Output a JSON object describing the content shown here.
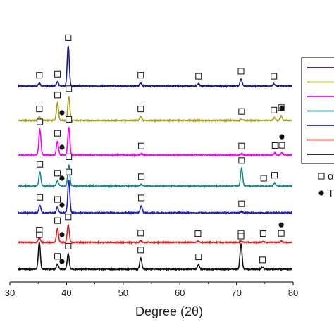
{
  "chart_data": {
    "type": "line",
    "title": "",
    "xlabel": "Degree (2θ)",
    "ylabel": "",
    "xlim": [
      30,
      80
    ],
    "xticks": [
      30,
      40,
      50,
      60,
      70,
      80
    ],
    "grid": false,
    "legend_placement": "right",
    "legend_markers": [
      {
        "symbol": "square",
        "text": "α"
      },
      {
        "symbol": "dot",
        "text": "T"
      }
    ],
    "series": [
      {
        "color": "#1a1a8c",
        "offset": 7,
        "peaks": [
          {
            "x": 35.2,
            "h": 0.12
          },
          {
            "x": 38.4,
            "h": 0.16
          },
          {
            "x": 40.3,
            "h": 1.6
          },
          {
            "x": 53.1,
            "h": 0.12
          },
          {
            "x": 63.3,
            "h": 0.08
          },
          {
            "x": 70.8,
            "h": 0.28
          },
          {
            "x": 76.6,
            "h": 0.08
          }
        ],
        "markers": [
          {
            "x": 35.2,
            "symbol": "square"
          },
          {
            "x": 38.4,
            "symbol": "square"
          },
          {
            "x": 40.3,
            "symbol": "square"
          },
          {
            "x": 53.1,
            "symbol": "square"
          },
          {
            "x": 63.3,
            "symbol": "square"
          },
          {
            "x": 70.8,
            "symbol": "square"
          },
          {
            "x": 76.6,
            "symbol": "square"
          }
        ]
      },
      {
        "color": "#a6a020",
        "offset": 6,
        "peaks": [
          {
            "x": 35.2,
            "h": 0.15
          },
          {
            "x": 38.4,
            "h": 0.7
          },
          {
            "x": 40.4,
            "h": 0.95
          },
          {
            "x": 53.1,
            "h": 0.15
          },
          {
            "x": 70.9,
            "h": 0.05
          },
          {
            "x": 76.7,
            "h": 0.12
          },
          {
            "x": 77.9,
            "h": 0.2
          }
        ],
        "markers": [
          {
            "x": 35.2,
            "symbol": "square"
          },
          {
            "x": 38.4,
            "symbol": "square"
          },
          {
            "x": 39.2,
            "symbol": "dot"
          },
          {
            "x": 40.4,
            "symbol": "square"
          },
          {
            "x": 53.1,
            "symbol": "square"
          },
          {
            "x": 70.9,
            "symbol": "square"
          },
          {
            "x": 76.6,
            "symbol": "square"
          },
          {
            "x": 77.9,
            "symbol": "square"
          },
          {
            "x": 78.0,
            "symbol": "dot"
          }
        ]
      },
      {
        "color": "#ff00ff",
        "offset": 5,
        "peaks": [
          {
            "x": 35.3,
            "h": 1.0
          },
          {
            "x": 38.4,
            "h": 0.55
          },
          {
            "x": 40.4,
            "h": 1.1
          },
          {
            "x": 53.2,
            "h": 0.05
          },
          {
            "x": 70.9,
            "h": 0.05
          },
          {
            "x": 76.8,
            "h": 0.07
          },
          {
            "x": 78.0,
            "h": 0.08
          }
        ],
        "markers": [
          {
            "x": 35.3,
            "symbol": "square"
          },
          {
            "x": 38.4,
            "symbol": "square"
          },
          {
            "x": 39.2,
            "symbol": "dot"
          },
          {
            "x": 40.4,
            "symbol": "square"
          },
          {
            "x": 53.2,
            "symbol": "square"
          },
          {
            "x": 70.9,
            "symbol": "square"
          },
          {
            "x": 76.8,
            "symbol": "square"
          },
          {
            "x": 78.0,
            "symbol": "square"
          },
          {
            "x": 78.0,
            "symbol": "dot"
          }
        ]
      },
      {
        "color": "#1a8c8c",
        "offset": 4,
        "peaks": [
          {
            "x": 35.3,
            "h": 0.55
          },
          {
            "x": 38.4,
            "h": 0.2
          },
          {
            "x": 40.4,
            "h": 0.85
          },
          {
            "x": 53.2,
            "h": 0.06
          },
          {
            "x": 70.9,
            "h": 0.7
          },
          {
            "x": 76.7,
            "h": 0.12
          }
        ],
        "markers": [
          {
            "x": 35.3,
            "symbol": "square"
          },
          {
            "x": 38.4,
            "symbol": "square"
          },
          {
            "x": 39.2,
            "symbol": "dot"
          },
          {
            "x": 40.4,
            "symbol": "square"
          },
          {
            "x": 53.2,
            "symbol": "square"
          },
          {
            "x": 70.9,
            "symbol": "square"
          },
          {
            "x": 74.8,
            "symbol": "square"
          },
          {
            "x": 76.7,
            "symbol": "square"
          }
        ]
      },
      {
        "color": "#1f1fcc",
        "offset": 3,
        "peaks": [
          {
            "x": 35.3,
            "h": 0.3
          },
          {
            "x": 38.4,
            "h": 0.22
          },
          {
            "x": 40.4,
            "h": 1.3
          },
          {
            "x": 53.2,
            "h": 0.28
          },
          {
            "x": 70.9,
            "h": 0.05
          }
        ],
        "markers": [
          {
            "x": 35.3,
            "symbol": "square"
          },
          {
            "x": 38.4,
            "symbol": "square"
          },
          {
            "x": 39.2,
            "symbol": "dot"
          },
          {
            "x": 40.4,
            "symbol": "square"
          },
          {
            "x": 53.2,
            "symbol": "square"
          },
          {
            "x": 70.9,
            "symbol": "square"
          }
        ]
      },
      {
        "color": "#dd2222",
        "offset": 2,
        "peaks": [
          {
            "x": 35.2,
            "h": 0.18
          },
          {
            "x": 38.4,
            "h": 0.55
          },
          {
            "x": 40.3,
            "h": 0.7
          },
          {
            "x": 53.1,
            "h": 0.06
          },
          {
            "x": 63.2,
            "h": 0.04
          },
          {
            "x": 70.8,
            "h": 0.05
          },
          {
            "x": 74.7,
            "h": 0.04
          },
          {
            "x": 77.9,
            "h": 0.05
          }
        ],
        "markers": [
          {
            "x": 35.2,
            "symbol": "square"
          },
          {
            "x": 38.4,
            "symbol": "square"
          },
          {
            "x": 39.2,
            "symbol": "dot"
          },
          {
            "x": 40.3,
            "symbol": "square"
          },
          {
            "x": 53.1,
            "symbol": "square"
          },
          {
            "x": 63.2,
            "symbol": "square"
          },
          {
            "x": 70.8,
            "symbol": "square"
          },
          {
            "x": 74.7,
            "symbol": "square"
          },
          {
            "x": 77.9,
            "symbol": "square"
          },
          {
            "x": 77.9,
            "symbol": "dot"
          }
        ]
      },
      {
        "color": "#111111",
        "offset": 1,
        "peaks": [
          {
            "x": 35.2,
            "h": 1.05
          },
          {
            "x": 38.4,
            "h": 0.2
          },
          {
            "x": 40.3,
            "h": 0.6
          },
          {
            "x": 53.1,
            "h": 0.45
          },
          {
            "x": 63.3,
            "h": 0.18
          },
          {
            "x": 70.8,
            "h": 1.0
          },
          {
            "x": 74.6,
            "h": 0.06
          }
        ],
        "markers": [
          {
            "x": 35.2,
            "symbol": "square"
          },
          {
            "x": 38.4,
            "symbol": "square"
          },
          {
            "x": 39.2,
            "symbol": "dot"
          },
          {
            "x": 40.3,
            "symbol": "square"
          },
          {
            "x": 53.1,
            "symbol": "square"
          },
          {
            "x": 63.3,
            "symbol": "square"
          },
          {
            "x": 70.8,
            "symbol": "square"
          },
          {
            "x": 74.6,
            "symbol": "square"
          }
        ]
      }
    ]
  }
}
